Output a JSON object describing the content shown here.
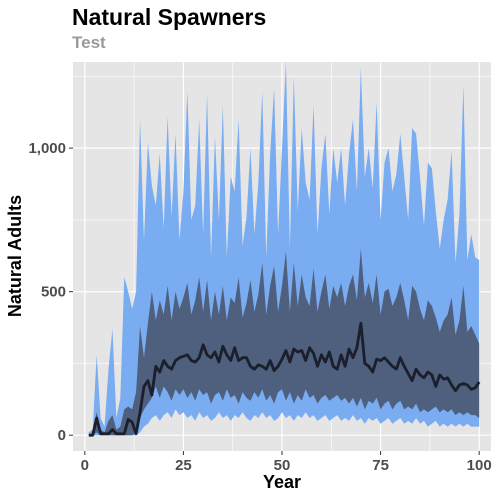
{
  "chart_data": {
    "type": "area",
    "title": "Natural Spawners",
    "subtitle": "Test",
    "xlabel": "Year",
    "ylabel": "Natural Adults",
    "xlim": [
      -3,
      103
    ],
    "ylim": [
      -55,
      1300
    ],
    "x_ticks": [
      0,
      25,
      50,
      75,
      100
    ],
    "x_tick_labels": [
      "0",
      "25",
      "50",
      "75",
      "100"
    ],
    "y_ticks": [
      0,
      500,
      1000
    ],
    "y_tick_labels": [
      "0",
      "500",
      "1,000"
    ],
    "grid": true,
    "colors": {
      "panel": "#e5e5e5",
      "grid": "#ffffff",
      "outer_band": "#7aacf2",
      "inner_band": "#4f5f7e",
      "median": "#1a1f2b"
    },
    "series": [
      {
        "kind": "band",
        "color": "#7aacf2",
        "x": [
          1,
          2,
          3,
          4,
          5,
          6,
          7,
          8,
          9,
          10,
          11,
          12,
          13,
          14,
          15,
          16,
          17,
          18,
          19,
          20,
          21,
          22,
          23,
          24,
          25,
          26,
          27,
          28,
          29,
          30,
          31,
          32,
          33,
          34,
          35,
          36,
          37,
          38,
          39,
          40,
          41,
          42,
          43,
          44,
          45,
          46,
          47,
          48,
          49,
          50,
          51,
          52,
          53,
          54,
          55,
          56,
          57,
          58,
          59,
          60,
          61,
          62,
          63,
          64,
          65,
          66,
          67,
          68,
          69,
          70,
          71,
          72,
          73,
          74,
          75,
          76,
          77,
          78,
          79,
          80,
          81,
          82,
          83,
          84,
          85,
          86,
          87,
          88,
          89,
          90,
          91,
          92,
          93,
          94,
          95,
          96,
          97,
          98,
          99,
          100
        ],
        "lower": [
          0,
          0,
          0,
          0,
          0,
          0,
          0,
          0,
          0,
          0,
          0,
          0,
          0,
          10,
          30,
          40,
          60,
          70,
          50,
          70,
          80,
          60,
          90,
          70,
          80,
          60,
          70,
          50,
          80,
          60,
          70,
          50,
          60,
          80,
          60,
          70,
          50,
          70,
          60,
          80,
          60,
          50,
          70,
          60,
          80,
          60,
          70,
          50,
          60,
          80,
          60,
          70,
          50,
          70,
          60,
          80,
          60,
          70,
          50,
          60,
          70,
          50,
          60,
          70,
          50,
          60,
          50,
          70,
          50,
          60,
          40,
          60,
          50,
          60,
          40,
          50,
          60,
          40,
          50,
          60,
          40,
          50,
          40,
          60,
          40,
          50,
          30,
          40,
          50,
          30,
          40,
          30,
          40,
          30,
          40,
          30,
          40,
          30,
          30,
          30
        ],
        "upper": [
          10,
          20,
          280,
          60,
          30,
          230,
          370,
          60,
          130,
          550,
          500,
          440,
          500,
          1100,
          680,
          1020,
          870,
          800,
          980,
          720,
          1110,
          760,
          1050,
          680,
          850,
          1200,
          750,
          800,
          1100,
          700,
          1190,
          620,
          1040,
          750,
          1150,
          620,
          900,
          850,
          1100,
          660,
          760,
          1000,
          700,
          880,
          1200,
          620,
          980,
          1210,
          700,
          1000,
          1300,
          650,
          1250,
          780,
          1070,
          880,
          820,
          1150,
          700,
          930,
          1050,
          770,
          1000,
          880,
          1000,
          800,
          980,
          1100,
          850,
          1280,
          900,
          1000,
          860,
          1160,
          750,
          950,
          1000,
          850,
          910,
          1050,
          900,
          750,
          1070,
          1050,
          900,
          730,
          950,
          930,
          780,
          650,
          750,
          820,
          990,
          600,
          770,
          1220,
          610,
          700,
          620,
          610
        ]
      },
      {
        "kind": "band",
        "color": "#4f5f7e",
        "x": [
          1,
          2,
          3,
          4,
          5,
          6,
          7,
          8,
          9,
          10,
          11,
          12,
          13,
          14,
          15,
          16,
          17,
          18,
          19,
          20,
          21,
          22,
          23,
          24,
          25,
          26,
          27,
          28,
          29,
          30,
          31,
          32,
          33,
          34,
          35,
          36,
          37,
          38,
          39,
          40,
          41,
          42,
          43,
          44,
          45,
          46,
          47,
          48,
          49,
          50,
          51,
          52,
          53,
          54,
          55,
          56,
          57,
          58,
          59,
          60,
          61,
          62,
          63,
          64,
          65,
          66,
          67,
          68,
          69,
          70,
          71,
          72,
          73,
          74,
          75,
          76,
          77,
          78,
          79,
          80,
          81,
          82,
          83,
          84,
          85,
          86,
          87,
          88,
          89,
          90,
          91,
          92,
          93,
          94,
          95,
          96,
          97,
          98,
          99,
          100
        ],
        "lower": [
          0,
          0,
          10,
          0,
          0,
          0,
          0,
          0,
          0,
          0,
          0,
          0,
          10,
          60,
          90,
          110,
          130,
          170,
          130,
          170,
          150,
          120,
          160,
          140,
          160,
          130,
          150,
          120,
          160,
          140,
          150,
          110,
          140,
          150,
          120,
          160,
          130,
          140,
          110,
          150,
          130,
          120,
          150,
          130,
          160,
          120,
          140,
          110,
          150,
          160,
          120,
          150,
          110,
          140,
          120,
          160,
          130,
          140,
          110,
          130,
          140,
          120,
          130,
          140,
          120,
          130,
          110,
          130,
          100,
          130,
          90,
          120,
          110,
          130,
          90,
          110,
          120,
          90,
          110,
          120,
          90,
          100,
          90,
          110,
          80,
          90,
          80,
          90,
          100,
          80,
          90,
          80,
          90,
          70,
          80,
          70,
          80,
          70,
          70,
          60
        ],
        "upper": [
          0,
          5,
          80,
          20,
          10,
          50,
          70,
          20,
          30,
          90,
          100,
          90,
          150,
          380,
          270,
          390,
          500,
          400,
          470,
          420,
          520,
          400,
          500,
          440,
          480,
          530,
          420,
          470,
          550,
          430,
          540,
          400,
          500,
          420,
          520,
          400,
          480,
          460,
          550,
          410,
          460,
          540,
          430,
          490,
          600,
          420,
          520,
          590,
          430,
          520,
          640,
          430,
          600,
          450,
          560,
          480,
          450,
          580,
          430,
          500,
          560,
          440,
          520,
          480,
          530,
          450,
          520,
          560,
          470,
          650,
          480,
          530,
          460,
          560,
          420,
          500,
          510,
          450,
          480,
          530,
          470,
          400,
          520,
          500,
          440,
          400,
          470,
          450,
          410,
          360,
          400,
          420,
          480,
          350,
          400,
          520,
          360,
          380,
          350,
          320
        ]
      },
      {
        "kind": "line",
        "color": "#1a1f2b",
        "x": [
          1,
          2,
          3,
          4,
          5,
          6,
          7,
          8,
          9,
          10,
          11,
          12,
          13,
          14,
          15,
          16,
          17,
          18,
          19,
          20,
          21,
          22,
          23,
          24,
          25,
          26,
          27,
          28,
          29,
          30,
          31,
          32,
          33,
          34,
          35,
          36,
          37,
          38,
          39,
          40,
          41,
          42,
          43,
          44,
          45,
          46,
          47,
          48,
          49,
          50,
          51,
          52,
          53,
          54,
          55,
          56,
          57,
          58,
          59,
          60,
          61,
          62,
          63,
          64,
          65,
          66,
          67,
          68,
          69,
          70,
          71,
          72,
          73,
          74,
          75,
          76,
          77,
          78,
          79,
          80,
          81,
          82,
          83,
          84,
          85,
          86,
          87,
          88,
          89,
          90,
          91,
          92,
          93,
          94,
          95,
          96,
          97,
          98,
          99,
          100
        ],
        "y": [
          0,
          0,
          60,
          5,
          5,
          5,
          20,
          5,
          5,
          5,
          55,
          45,
          5,
          80,
          170,
          190,
          140,
          240,
          220,
          260,
          240,
          230,
          260,
          270,
          275,
          280,
          260,
          255,
          270,
          315,
          280,
          270,
          290,
          255,
          310,
          280,
          260,
          305,
          260,
          270,
          270,
          240,
          230,
          245,
          240,
          230,
          260,
          225,
          240,
          265,
          295,
          255,
          300,
          290,
          295,
          260,
          305,
          285,
          240,
          280,
          255,
          290,
          240,
          230,
          280,
          240,
          300,
          270,
          305,
          390,
          250,
          240,
          220,
          265,
          260,
          270,
          255,
          240,
          230,
          270,
          240,
          215,
          190,
          230,
          210,
          200,
          220,
          210,
          170,
          210,
          195,
          200,
          175,
          155,
          175,
          180,
          175,
          160,
          165,
          185
        ]
      }
    ]
  }
}
